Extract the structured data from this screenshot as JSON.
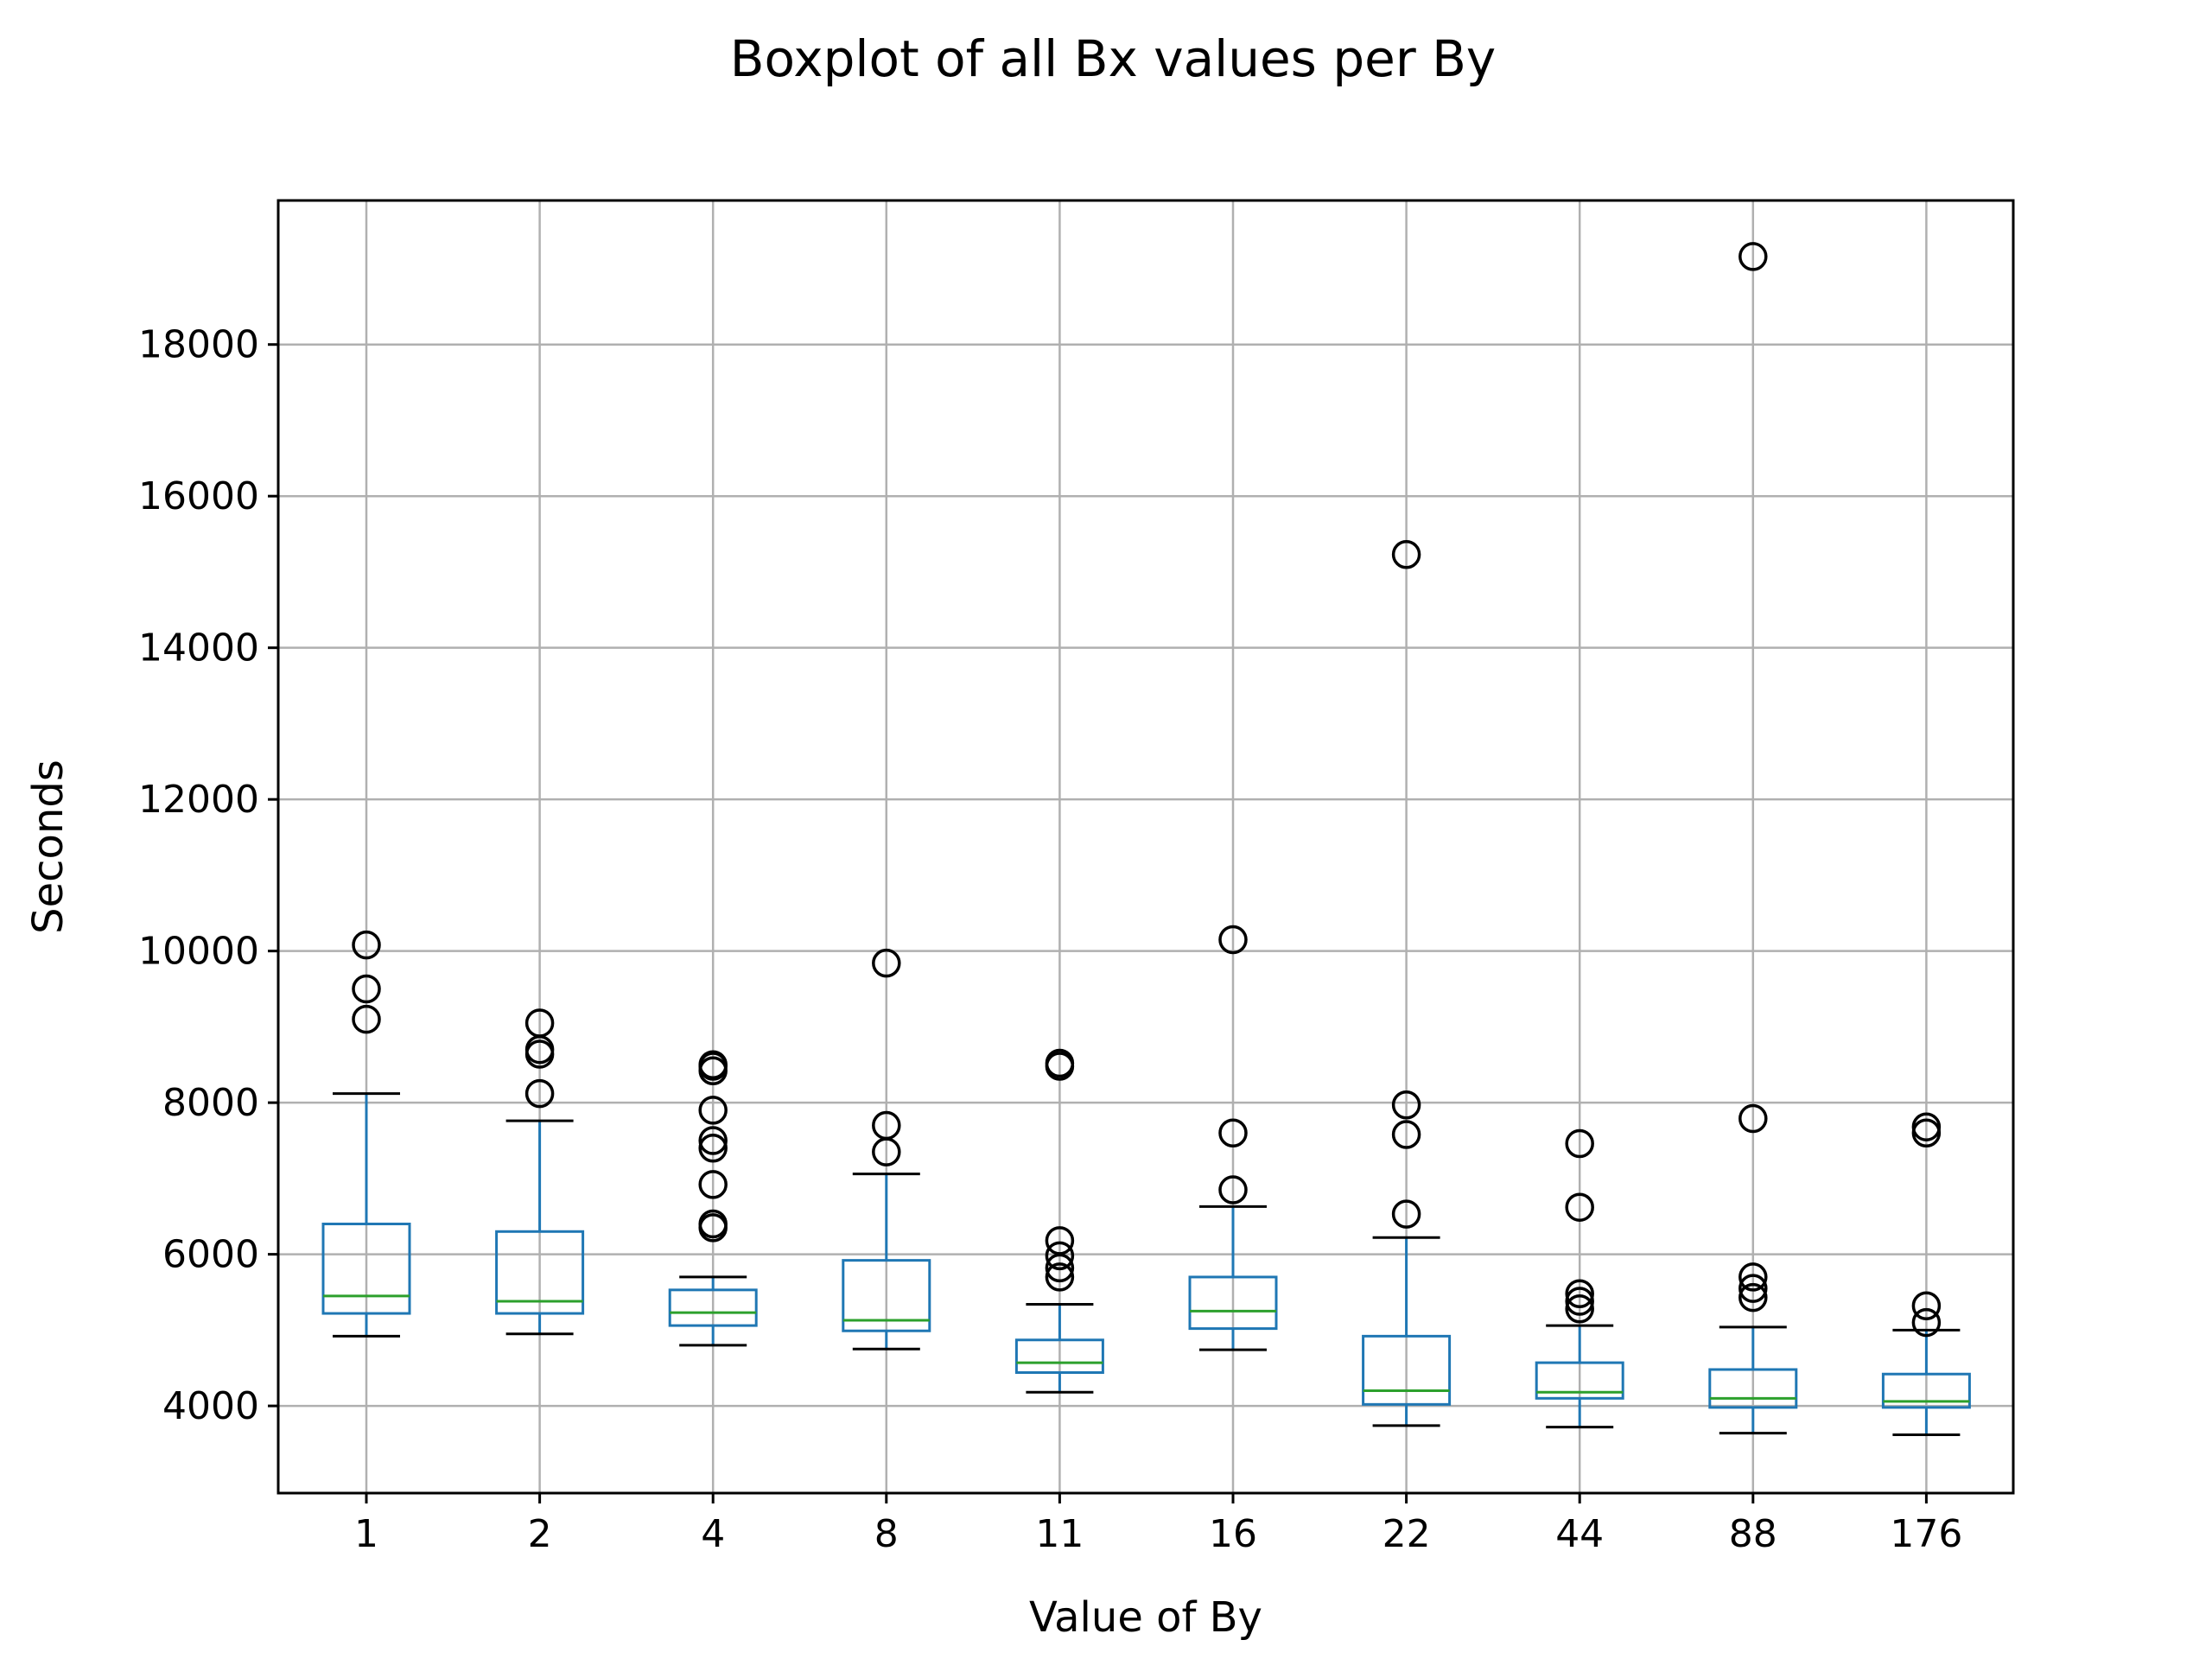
{
  "chart_data": {
    "type": "boxplot",
    "title": "Boxplot of all Bx values per By",
    "xlabel": "Value of By",
    "ylabel": "Seconds",
    "ylim": [
      2850,
      19900
    ],
    "yticks": [
      4000,
      6000,
      8000,
      10000,
      12000,
      14000,
      16000,
      18000
    ],
    "grid": true,
    "colors": {
      "box": "#1f77b4",
      "median": "#2ca02c",
      "flier": "#000000",
      "grid": "#b0b0b0"
    },
    "categories": [
      "1",
      "2",
      "4",
      "8",
      "11",
      "16",
      "22",
      "44",
      "88",
      "176"
    ],
    "boxes": [
      {
        "category": "1",
        "whisker_low": 4920,
        "q1": 5220,
        "median": 5450,
        "q3": 6400,
        "whisker_high": 8120,
        "fliers": [
          9100,
          9500,
          10080
        ]
      },
      {
        "category": "2",
        "whisker_low": 4950,
        "q1": 5220,
        "median": 5380,
        "q3": 6300,
        "whisker_high": 7760,
        "fliers": [
          8120,
          8640,
          8700,
          9050
        ]
      },
      {
        "category": "4",
        "whisker_low": 4800,
        "q1": 5060,
        "median": 5230,
        "q3": 5530,
        "whisker_high": 5700,
        "fliers": [
          6350,
          6400,
          6920,
          7400,
          7500,
          7900,
          8420,
          8480,
          8500
        ]
      },
      {
        "category": "8",
        "whisker_low": 4750,
        "q1": 4990,
        "median": 5130,
        "q3": 5920,
        "whisker_high": 7060,
        "fliers": [
          7350,
          7700,
          9840
        ]
      },
      {
        "category": "11",
        "whisker_low": 4180,
        "q1": 4440,
        "median": 4570,
        "q3": 4870,
        "whisker_high": 5340,
        "fliers": [
          5700,
          5820,
          5980,
          6180,
          8480,
          8520
        ]
      },
      {
        "category": "16",
        "whisker_low": 4740,
        "q1": 5020,
        "median": 5250,
        "q3": 5700,
        "whisker_high": 6630,
        "fliers": [
          6850,
          7600,
          10150
        ]
      },
      {
        "category": "22",
        "whisker_low": 3740,
        "q1": 4020,
        "median": 4200,
        "q3": 4920,
        "whisker_high": 6220,
        "fliers": [
          6530,
          7580,
          7970,
          15230
        ]
      },
      {
        "category": "44",
        "whisker_low": 3720,
        "q1": 4100,
        "median": 4180,
        "q3": 4570,
        "whisker_high": 5060,
        "fliers": [
          5280,
          5380,
          5480,
          6620,
          7460
        ]
      },
      {
        "category": "88",
        "whisker_low": 3640,
        "q1": 3980,
        "median": 4100,
        "q3": 4480,
        "whisker_high": 5040,
        "fliers": [
          5430,
          5550,
          5700,
          7790,
          19160
        ]
      },
      {
        "category": "176",
        "whisker_low": 3620,
        "q1": 3980,
        "median": 4060,
        "q3": 4420,
        "whisker_high": 5000,
        "fliers": [
          5100,
          5320,
          7600,
          7680
        ]
      }
    ]
  }
}
